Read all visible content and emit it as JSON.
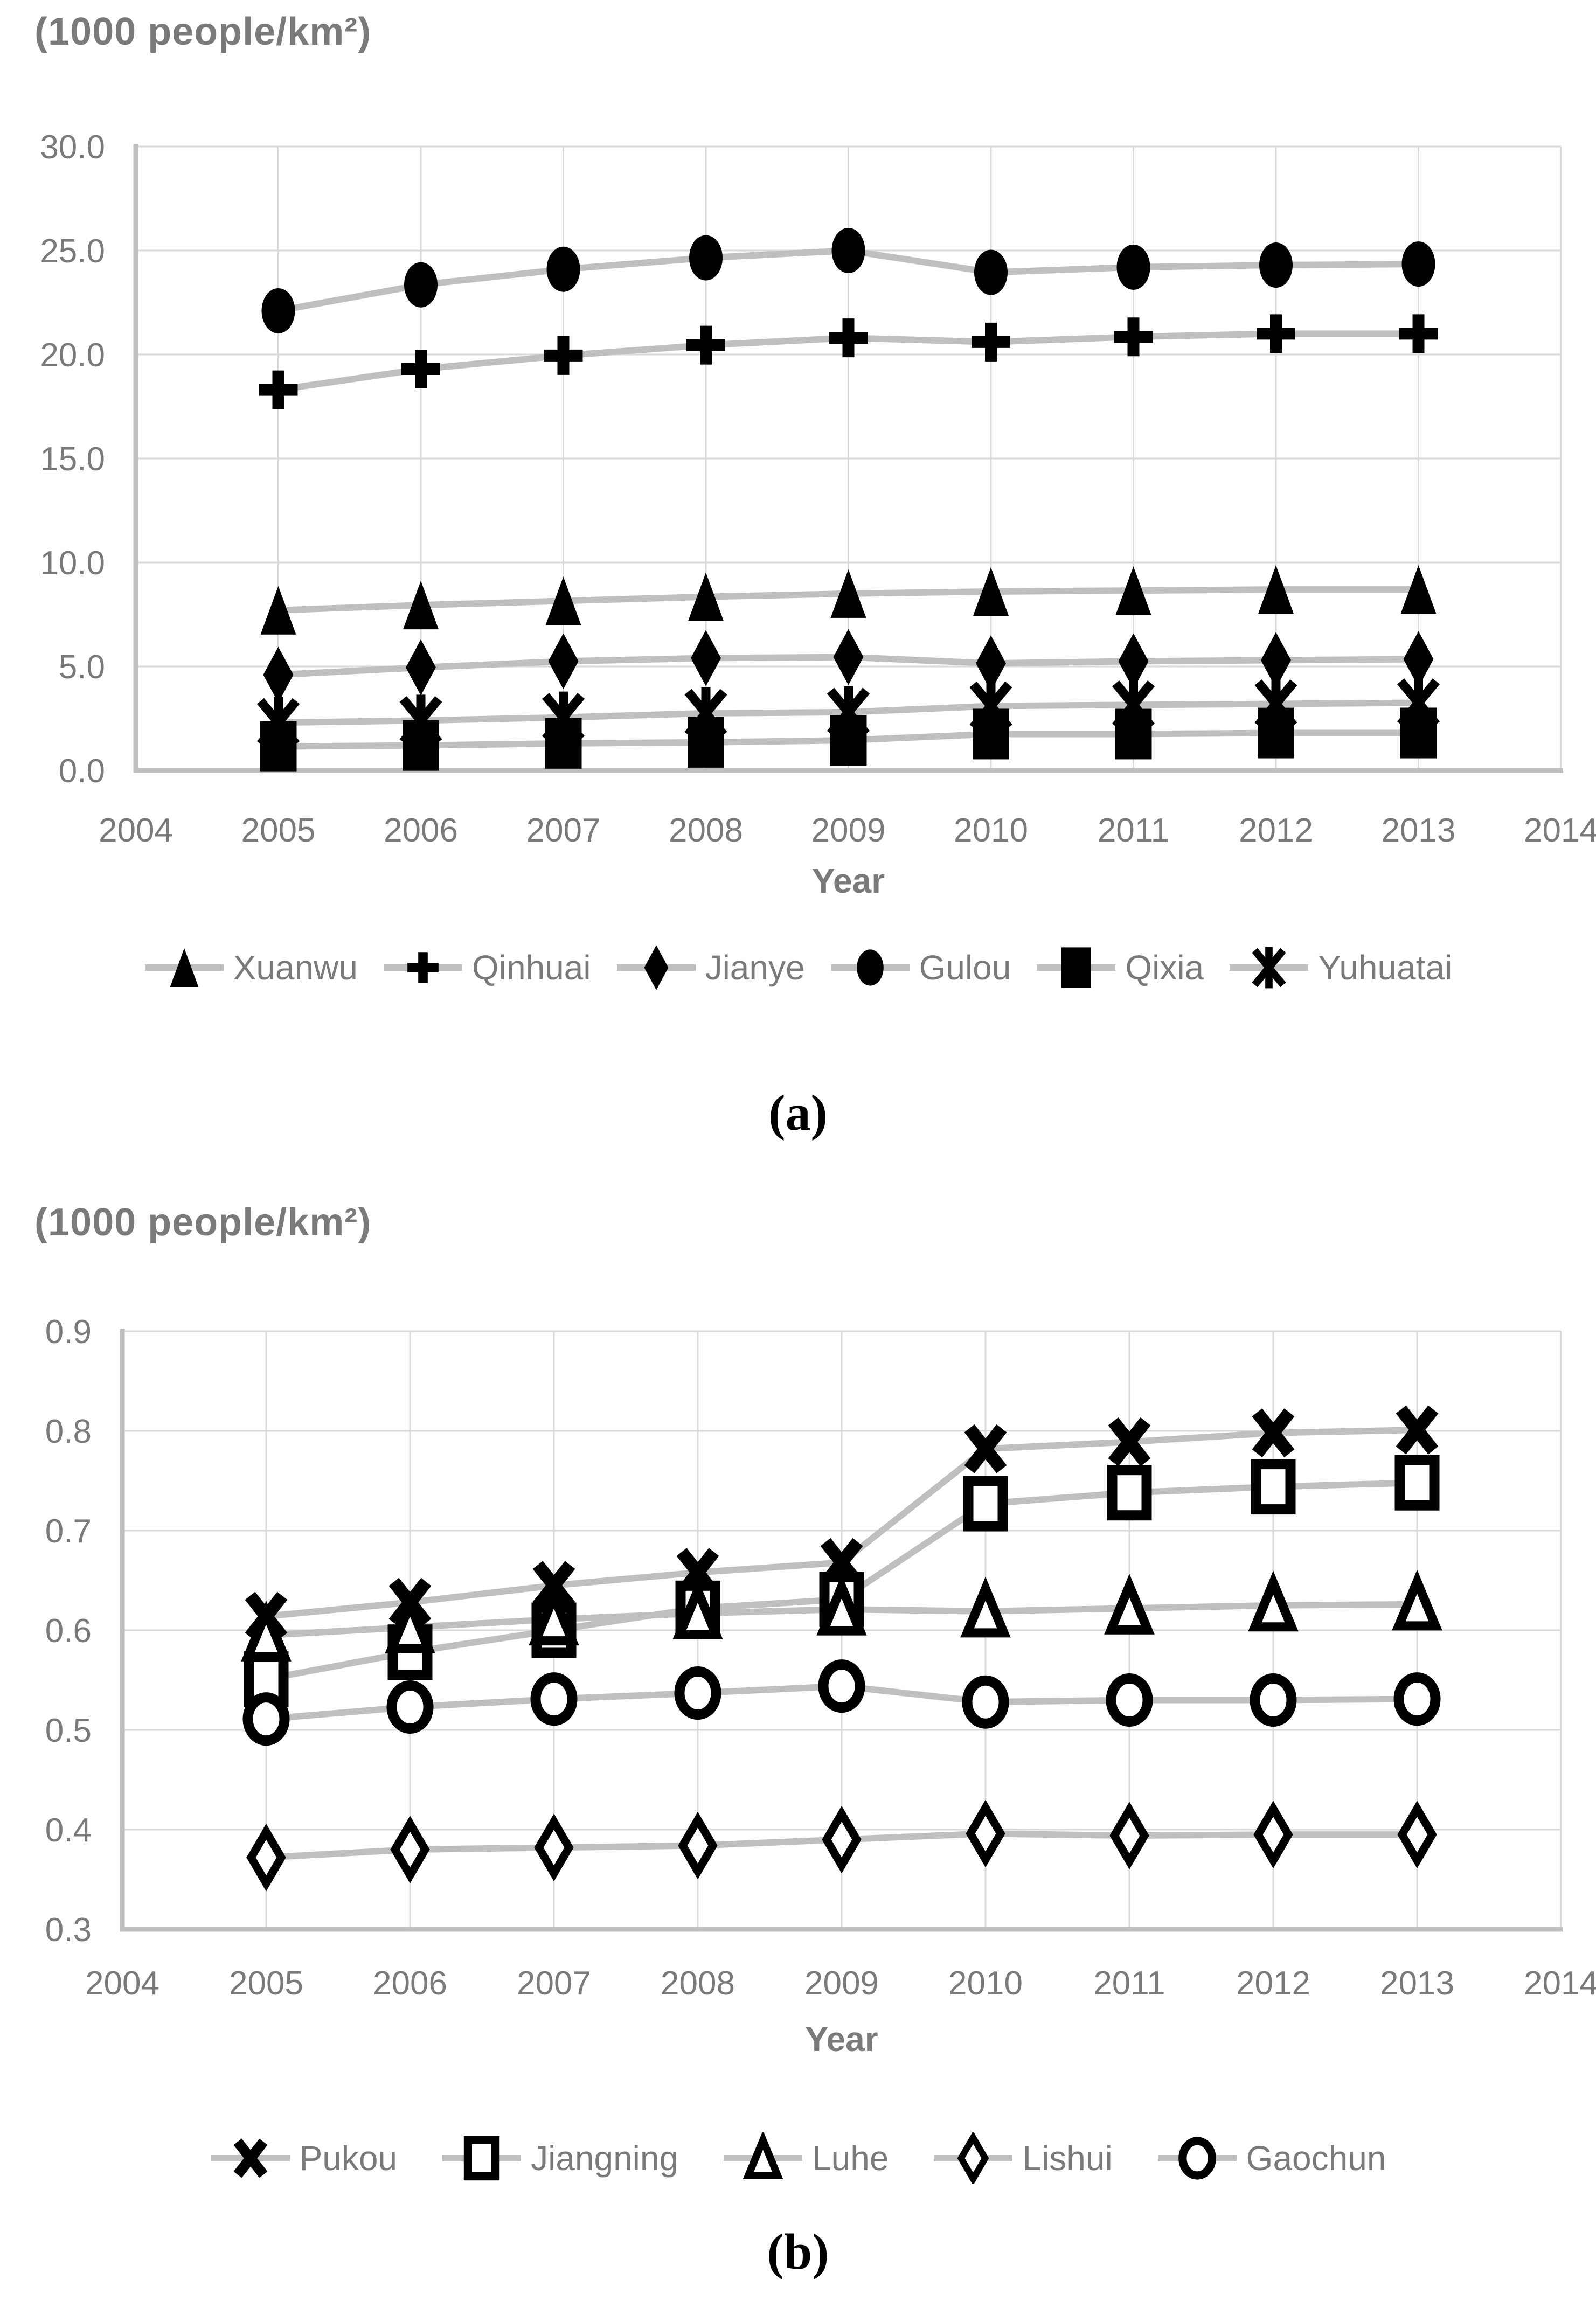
{
  "page": {
    "background": "#ffffff"
  },
  "colors": {
    "text_gray": "#7a7a7a",
    "grid": "#d9d9d9",
    "series_line": "#bfbfbf",
    "marker": "#000000",
    "open_marker_fill": "#ffffff"
  },
  "chart_data": [
    {
      "type": "line",
      "panel": "a",
      "title": "(1000 people/km²)",
      "xlabel": "Year",
      "caption": "(a)",
      "grid": true,
      "legend_position": "bottom",
      "x": [
        2005,
        2006,
        2007,
        2008,
        2009,
        2010,
        2011,
        2012,
        2013
      ],
      "xticks": [
        2004,
        2005,
        2006,
        2007,
        2008,
        2009,
        2010,
        2011,
        2012,
        2013,
        2014
      ],
      "ylim": [
        0,
        30
      ],
      "ytick_values": [
        30,
        25,
        20,
        15,
        10,
        5,
        0
      ],
      "ytick_labels": [
        "30.0",
        "25.0",
        "20.0",
        "15.0",
        "10.0",
        "5.0",
        "0.0"
      ],
      "series": [
        {
          "name": "Xuanwu",
          "marker": "triangle-filled",
          "values": [
            7.7,
            7.95,
            8.15,
            8.35,
            8.5,
            8.6,
            8.65,
            8.7,
            8.7
          ]
        },
        {
          "name": "Qinhuai",
          "marker": "plus",
          "values": [
            18.3,
            19.3,
            19.95,
            20.45,
            20.8,
            20.6,
            20.85,
            21.0,
            21.0
          ]
        },
        {
          "name": "Jianye",
          "marker": "diamond-filled",
          "values": [
            4.6,
            4.95,
            5.25,
            5.4,
            5.45,
            5.15,
            5.25,
            5.3,
            5.35
          ]
        },
        {
          "name": "Gulou",
          "marker": "ellipse-filled",
          "values": [
            22.1,
            23.35,
            24.1,
            24.65,
            25.0,
            23.95,
            24.2,
            24.3,
            24.35
          ]
        },
        {
          "name": "Qixia",
          "marker": "square-filled",
          "values": [
            1.15,
            1.2,
            1.3,
            1.35,
            1.45,
            1.75,
            1.75,
            1.8,
            1.8
          ]
        },
        {
          "name": "Yuhuatai",
          "marker": "asterisk",
          "values": [
            2.3,
            2.4,
            2.55,
            2.75,
            2.8,
            3.1,
            3.15,
            3.2,
            3.25
          ]
        }
      ]
    },
    {
      "type": "line",
      "panel": "b",
      "title": "(1000 people/km²)",
      "xlabel": "Year",
      "caption": "(b)",
      "grid": true,
      "legend_position": "bottom",
      "x": [
        2005,
        2006,
        2007,
        2008,
        2009,
        2010,
        2011,
        2012,
        2013
      ],
      "xticks": [
        2004,
        2005,
        2006,
        2007,
        2008,
        2009,
        2010,
        2011,
        2012,
        2013,
        2014
      ],
      "ylim": [
        0.3,
        0.9
      ],
      "ytick_values": [
        0.9,
        0.8,
        0.7,
        0.6,
        0.5,
        0.4,
        0.3
      ],
      "ytick_labels": [
        "0.9",
        "0.8",
        "0.7",
        "0.6",
        "0.5",
        "0.4",
        "0.3"
      ],
      "series": [
        {
          "name": "Pukou",
          "marker": "x-mark",
          "values": [
            0.614,
            0.628,
            0.645,
            0.658,
            0.668,
            0.782,
            0.789,
            0.798,
            0.801
          ]
        },
        {
          "name": "Jiangning",
          "marker": "square-open",
          "values": [
            0.551,
            0.578,
            0.6,
            0.622,
            0.631,
            0.727,
            0.738,
            0.744,
            0.748
          ]
        },
        {
          "name": "Luhe",
          "marker": "triangle-open",
          "values": [
            0.595,
            0.603,
            0.611,
            0.617,
            0.621,
            0.619,
            0.622,
            0.625,
            0.626
          ]
        },
        {
          "name": "Lishui",
          "marker": "diamond-open",
          "values": [
            0.372,
            0.38,
            0.382,
            0.384,
            0.39,
            0.396,
            0.394,
            0.395,
            0.395
          ]
        },
        {
          "name": "Gaochun",
          "marker": "ellipse-open",
          "values": [
            0.511,
            0.523,
            0.531,
            0.537,
            0.544,
            0.528,
            0.53,
            0.53,
            0.531
          ]
        }
      ]
    }
  ]
}
